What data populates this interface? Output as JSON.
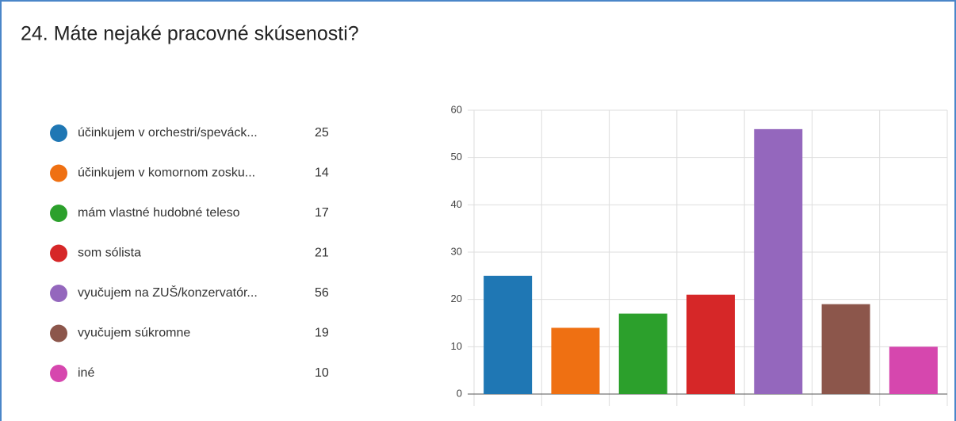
{
  "chart_data": {
    "type": "bar",
    "title": "24. Máte nejaké pracovné skúsenosti?",
    "categories": [
      "účinkujem v orchestri/speváck...",
      "účinkujem v komornom zosku...",
      "mám vlastné hudobné teleso",
      "som sólista",
      "vyučujem na ZUŠ/konzervatór...",
      "vyučujem súkromne",
      "iné"
    ],
    "values": [
      25,
      14,
      17,
      21,
      56,
      19,
      10
    ],
    "colors": [
      "#1f77b4",
      "#ef7012",
      "#2ca02c",
      "#d62728",
      "#9467bd",
      "#8c564b",
      "#d647ae"
    ],
    "ylim": [
      0,
      60
    ],
    "yticks": [
      0,
      10,
      20,
      30,
      40,
      50,
      60
    ],
    "grid": true
  }
}
